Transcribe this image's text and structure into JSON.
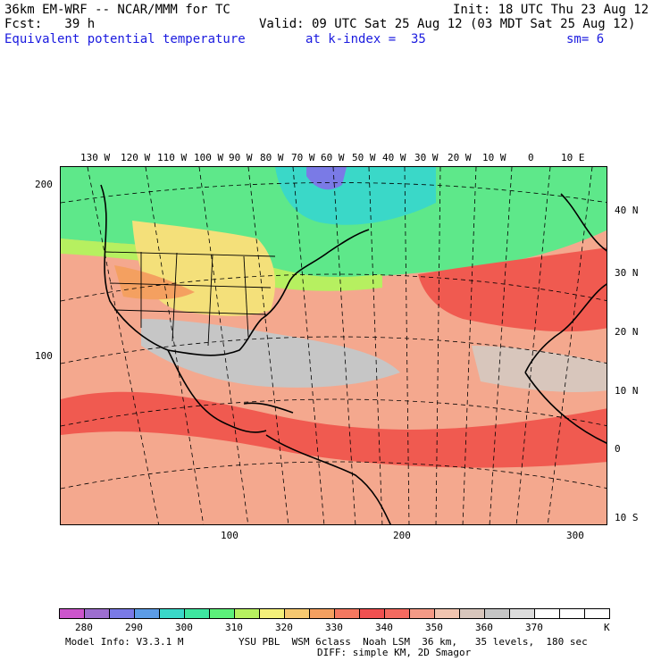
{
  "header": {
    "model_title": "36km EM-WRF -- NCAR/MMM for TC",
    "init": "Init: 18 UTC Thu 23 Aug 12",
    "forecast": "Fcst:   39 h",
    "valid": "Valid: 09 UTC Sat 25 Aug 12 (03 MDT Sat 25 Aug 12)",
    "field": "Equivalent potential temperature",
    "level": "at k-index =  35",
    "smoothing": "sm= 6"
  },
  "map": {
    "top_lon_labels": [
      "130 W",
      "120 W",
      "110 W",
      "100 W",
      "90 W",
      "80 W",
      "70 W",
      "60 W",
      "50 W",
      "40 W",
      "30 W",
      "20 W",
      "10 W",
      "0",
      "10 E"
    ],
    "right_lat_labels": [
      "40 N",
      "30 N",
      "20 N",
      "10 N",
      "0",
      "10 S"
    ],
    "left_grid_labels": [
      "200",
      "100"
    ],
    "bottom_grid_labels": [
      "100",
      "200",
      "300"
    ]
  },
  "colorbar": {
    "colors": [
      "#cc55cc",
      "#9d6ecf",
      "#7a7ae6",
      "#5c9ce6",
      "#3ad8c8",
      "#3ee6a0",
      "#5cf07a",
      "#b6f060",
      "#f4f07a",
      "#f6c870",
      "#f4a060",
      "#f47860",
      "#f05050",
      "#f46a60",
      "#f49a86",
      "#f0c4b0",
      "#d8c6bc",
      "#c6c6c6",
      "#dcdcdc",
      "#ffffff",
      "#ffffff",
      "#ffffff"
    ],
    "tick_labels": [
      "280",
      "290",
      "300",
      "310",
      "320",
      "330",
      "340",
      "350",
      "360",
      "370"
    ],
    "unit": "K"
  },
  "footer": {
    "model_info": "Model Info: V3.3.1 M",
    "physics": "YSU PBL  WSM 6class  Noah LSM  36 km,   35 levels,  180 sec",
    "diffusion": "DIFF: simple KM, 2D Smagor"
  }
}
